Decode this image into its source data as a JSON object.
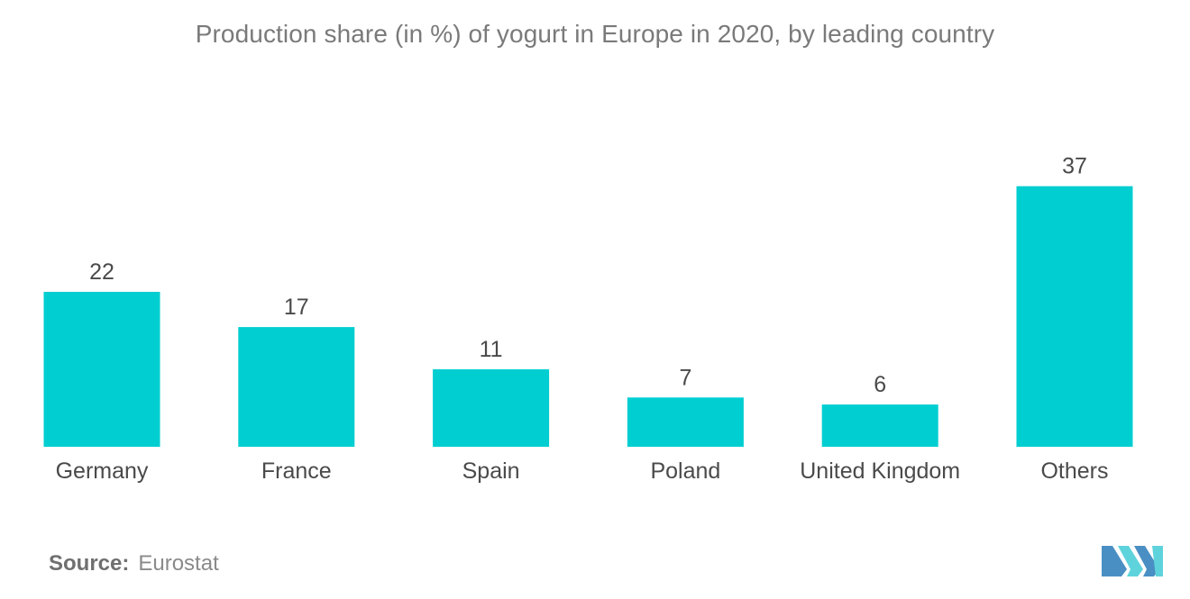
{
  "title": "Production share (in %) of yogurt in Europe in 2020,  by leading country",
  "source": {
    "label": "Source:",
    "value": "Eurostat"
  },
  "logo": {
    "icon": "mordor-intelligence-logo-icon"
  },
  "colors": {
    "bar": "#00CED1",
    "title": "#7a7a7a",
    "label": "#4a4a4a",
    "logo_dark": "#4a8fc4",
    "logo_light": "#5fd3dc"
  },
  "chart_data": {
    "type": "bar",
    "categories": [
      "Germany",
      "France",
      "Spain",
      "Poland",
      "United Kingdom",
      "Others"
    ],
    "values": [
      22,
      17,
      11,
      7,
      6,
      37
    ],
    "data_labels": [
      "22",
      "17",
      "11",
      "7",
      "6",
      "37"
    ],
    "title": "Production share (in %) of yogurt in Europe in 2020,  by leading country",
    "xlabel": "",
    "ylabel": "",
    "ylim": [
      0,
      37
    ],
    "grid": false,
    "legend": "none"
  }
}
